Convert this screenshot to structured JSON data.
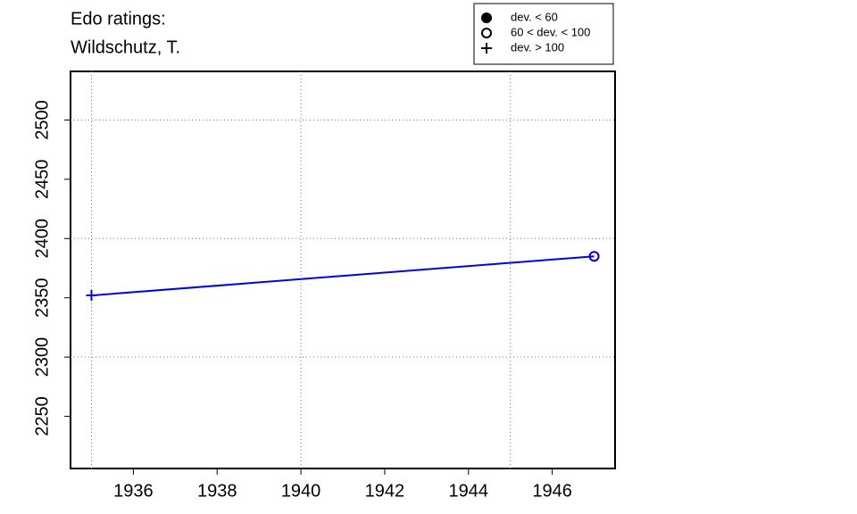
{
  "chart_data": {
    "type": "line",
    "title": [
      "Edo ratings:",
      "Wildschutz, T."
    ],
    "x": [
      1935,
      1947
    ],
    "series": [
      {
        "color": "#0000ee",
        "values": [
          2352,
          2385
        ],
        "markers": [
          "plus",
          "circle"
        ]
      }
    ],
    "xlim": [
      1934.5,
      1947.5
    ],
    "ylim": [
      2206,
      2541
    ],
    "xticks": [
      1936,
      1938,
      1940,
      1942,
      1944,
      1946
    ],
    "yticks": [
      2250,
      2300,
      2350,
      2400,
      2450,
      2500
    ],
    "xgrid": [
      1935,
      1940,
      1945
    ],
    "ygrid": [
      2300,
      2400,
      2500
    ],
    "legend": {
      "position": "top",
      "entries": [
        {
          "symbol": "filled-circle",
          "label": "dev. < 60"
        },
        {
          "symbol": "open-circle",
          "label": "60 < dev. < 100"
        },
        {
          "symbol": "plus",
          "label": "dev. > 100"
        }
      ]
    }
  }
}
